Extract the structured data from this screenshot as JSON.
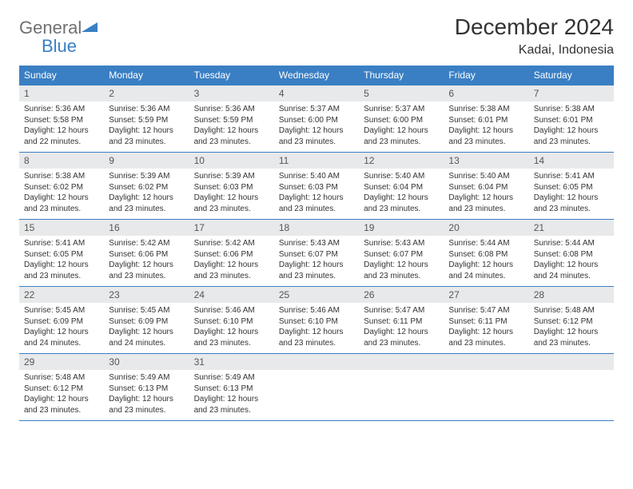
{
  "brand": {
    "part1": "General",
    "part2": "Blue"
  },
  "title": "December 2024",
  "location": "Kadai, Indonesia",
  "colors": {
    "header_bg": "#3a7fc4",
    "daynum_bg": "#e8e9ea",
    "border": "#3a7fc4",
    "text": "#333333",
    "logo_gray": "#707070",
    "logo_blue": "#3a7fc4"
  },
  "typography": {
    "title_fontsize": 28,
    "location_fontsize": 16,
    "header_fontsize": 12,
    "daynum_fontsize": 12,
    "body_fontsize": 10
  },
  "dayHeaders": [
    "Sunday",
    "Monday",
    "Tuesday",
    "Wednesday",
    "Thursday",
    "Friday",
    "Saturday"
  ],
  "weeks": [
    [
      {
        "num": "1",
        "sunrise": "Sunrise: 5:36 AM",
        "sunset": "Sunset: 5:58 PM",
        "daylight": "Daylight: 12 hours and 22 minutes."
      },
      {
        "num": "2",
        "sunrise": "Sunrise: 5:36 AM",
        "sunset": "Sunset: 5:59 PM",
        "daylight": "Daylight: 12 hours and 23 minutes."
      },
      {
        "num": "3",
        "sunrise": "Sunrise: 5:36 AM",
        "sunset": "Sunset: 5:59 PM",
        "daylight": "Daylight: 12 hours and 23 minutes."
      },
      {
        "num": "4",
        "sunrise": "Sunrise: 5:37 AM",
        "sunset": "Sunset: 6:00 PM",
        "daylight": "Daylight: 12 hours and 23 minutes."
      },
      {
        "num": "5",
        "sunrise": "Sunrise: 5:37 AM",
        "sunset": "Sunset: 6:00 PM",
        "daylight": "Daylight: 12 hours and 23 minutes."
      },
      {
        "num": "6",
        "sunrise": "Sunrise: 5:38 AM",
        "sunset": "Sunset: 6:01 PM",
        "daylight": "Daylight: 12 hours and 23 minutes."
      },
      {
        "num": "7",
        "sunrise": "Sunrise: 5:38 AM",
        "sunset": "Sunset: 6:01 PM",
        "daylight": "Daylight: 12 hours and 23 minutes."
      }
    ],
    [
      {
        "num": "8",
        "sunrise": "Sunrise: 5:38 AM",
        "sunset": "Sunset: 6:02 PM",
        "daylight": "Daylight: 12 hours and 23 minutes."
      },
      {
        "num": "9",
        "sunrise": "Sunrise: 5:39 AM",
        "sunset": "Sunset: 6:02 PM",
        "daylight": "Daylight: 12 hours and 23 minutes."
      },
      {
        "num": "10",
        "sunrise": "Sunrise: 5:39 AM",
        "sunset": "Sunset: 6:03 PM",
        "daylight": "Daylight: 12 hours and 23 minutes."
      },
      {
        "num": "11",
        "sunrise": "Sunrise: 5:40 AM",
        "sunset": "Sunset: 6:03 PM",
        "daylight": "Daylight: 12 hours and 23 minutes."
      },
      {
        "num": "12",
        "sunrise": "Sunrise: 5:40 AM",
        "sunset": "Sunset: 6:04 PM",
        "daylight": "Daylight: 12 hours and 23 minutes."
      },
      {
        "num": "13",
        "sunrise": "Sunrise: 5:40 AM",
        "sunset": "Sunset: 6:04 PM",
        "daylight": "Daylight: 12 hours and 23 minutes."
      },
      {
        "num": "14",
        "sunrise": "Sunrise: 5:41 AM",
        "sunset": "Sunset: 6:05 PM",
        "daylight": "Daylight: 12 hours and 23 minutes."
      }
    ],
    [
      {
        "num": "15",
        "sunrise": "Sunrise: 5:41 AM",
        "sunset": "Sunset: 6:05 PM",
        "daylight": "Daylight: 12 hours and 23 minutes."
      },
      {
        "num": "16",
        "sunrise": "Sunrise: 5:42 AM",
        "sunset": "Sunset: 6:06 PM",
        "daylight": "Daylight: 12 hours and 23 minutes."
      },
      {
        "num": "17",
        "sunrise": "Sunrise: 5:42 AM",
        "sunset": "Sunset: 6:06 PM",
        "daylight": "Daylight: 12 hours and 23 minutes."
      },
      {
        "num": "18",
        "sunrise": "Sunrise: 5:43 AM",
        "sunset": "Sunset: 6:07 PM",
        "daylight": "Daylight: 12 hours and 23 minutes."
      },
      {
        "num": "19",
        "sunrise": "Sunrise: 5:43 AM",
        "sunset": "Sunset: 6:07 PM",
        "daylight": "Daylight: 12 hours and 23 minutes."
      },
      {
        "num": "20",
        "sunrise": "Sunrise: 5:44 AM",
        "sunset": "Sunset: 6:08 PM",
        "daylight": "Daylight: 12 hours and 24 minutes."
      },
      {
        "num": "21",
        "sunrise": "Sunrise: 5:44 AM",
        "sunset": "Sunset: 6:08 PM",
        "daylight": "Daylight: 12 hours and 24 minutes."
      }
    ],
    [
      {
        "num": "22",
        "sunrise": "Sunrise: 5:45 AM",
        "sunset": "Sunset: 6:09 PM",
        "daylight": "Daylight: 12 hours and 24 minutes."
      },
      {
        "num": "23",
        "sunrise": "Sunrise: 5:45 AM",
        "sunset": "Sunset: 6:09 PM",
        "daylight": "Daylight: 12 hours and 24 minutes."
      },
      {
        "num": "24",
        "sunrise": "Sunrise: 5:46 AM",
        "sunset": "Sunset: 6:10 PM",
        "daylight": "Daylight: 12 hours and 23 minutes."
      },
      {
        "num": "25",
        "sunrise": "Sunrise: 5:46 AM",
        "sunset": "Sunset: 6:10 PM",
        "daylight": "Daylight: 12 hours and 23 minutes."
      },
      {
        "num": "26",
        "sunrise": "Sunrise: 5:47 AM",
        "sunset": "Sunset: 6:11 PM",
        "daylight": "Daylight: 12 hours and 23 minutes."
      },
      {
        "num": "27",
        "sunrise": "Sunrise: 5:47 AM",
        "sunset": "Sunset: 6:11 PM",
        "daylight": "Daylight: 12 hours and 23 minutes."
      },
      {
        "num": "28",
        "sunrise": "Sunrise: 5:48 AM",
        "sunset": "Sunset: 6:12 PM",
        "daylight": "Daylight: 12 hours and 23 minutes."
      }
    ],
    [
      {
        "num": "29",
        "sunrise": "Sunrise: 5:48 AM",
        "sunset": "Sunset: 6:12 PM",
        "daylight": "Daylight: 12 hours and 23 minutes."
      },
      {
        "num": "30",
        "sunrise": "Sunrise: 5:49 AM",
        "sunset": "Sunset: 6:13 PM",
        "daylight": "Daylight: 12 hours and 23 minutes."
      },
      {
        "num": "31",
        "sunrise": "Sunrise: 5:49 AM",
        "sunset": "Sunset: 6:13 PM",
        "daylight": "Daylight: 12 hours and 23 minutes."
      },
      null,
      null,
      null,
      null
    ]
  ]
}
